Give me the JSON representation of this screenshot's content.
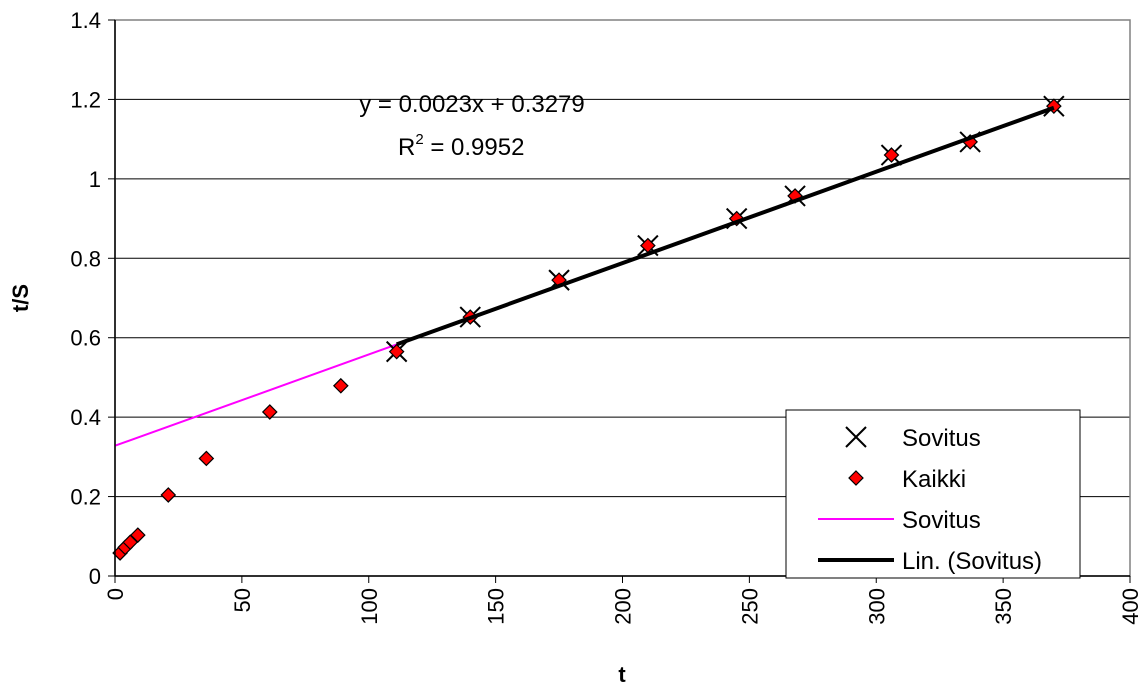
{
  "chart_data": {
    "type": "scatter",
    "xlabel": "t",
    "ylabel": "t/S",
    "xlim": [
      0,
      400
    ],
    "ylim": [
      0,
      1.4
    ],
    "x_ticks": [
      0,
      50,
      100,
      150,
      200,
      250,
      300,
      350,
      400
    ],
    "y_ticks": [
      0,
      0.2,
      0.4,
      0.6,
      0.8,
      1.0,
      1.2,
      1.4
    ],
    "y_tick_labels": [
      "0",
      "0.2",
      "0.4",
      "0.6",
      "0.8",
      "1",
      "1.2",
      "1.4"
    ],
    "grid": "horizontal",
    "legend_position": "bottom-right",
    "annotation": {
      "equation": "y = 0.0023x + 0.3279",
      "r2_prefix": "R",
      "r2_sup": "2",
      "r2_value": " = 0.9952"
    },
    "trendline": {
      "slope": 0.0023,
      "intercept": 0.3279,
      "x_range": [
        111,
        370
      ]
    },
    "series": [
      {
        "name": "Sovitus",
        "kind": "marker-x",
        "color": "#000000",
        "x": [
          111,
          140,
          175,
          210,
          245,
          268,
          306,
          337,
          370
        ],
        "y": [
          0.565,
          0.652,
          0.745,
          0.832,
          0.9,
          0.957,
          1.06,
          1.093,
          1.183
        ]
      },
      {
        "name": "Kaikki",
        "kind": "marker-diamond",
        "color": "#ff0000",
        "x": [
          2,
          4,
          6,
          9,
          21,
          36,
          61,
          89,
          111,
          140,
          175,
          210,
          245,
          268,
          306,
          337,
          370
        ],
        "y": [
          0.058,
          0.072,
          0.085,
          0.103,
          0.204,
          0.296,
          0.413,
          0.479,
          0.565,
          0.652,
          0.745,
          0.832,
          0.9,
          0.957,
          1.06,
          1.093,
          1.183
        ]
      },
      {
        "name": "Sovitus",
        "kind": "line",
        "color": "#ff00ff",
        "x": [
          0,
          111
        ],
        "y": [
          0.328,
          0.583
        ]
      },
      {
        "name": "Lin. (Sovitus)",
        "kind": "trendline",
        "color": "#000000"
      }
    ]
  }
}
